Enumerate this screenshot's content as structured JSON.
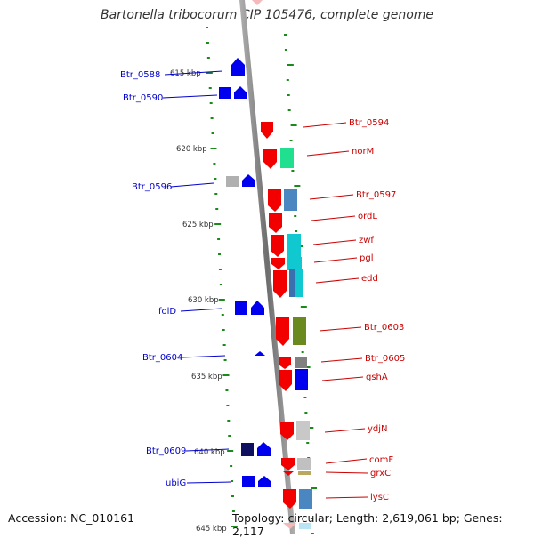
{
  "title": "Bartonella tribocorum CIP 105476, complete genome",
  "footer": {
    "accession": "Accession: NC_010161",
    "summary": "Topology: circular; Length: 2,619,061 bp; Genes: 2,117"
  },
  "colors": {
    "forward_strand": "#f20000",
    "reverse_strand": "#0000ee",
    "tick_marks": "#1a8a1a",
    "axis": "#8c8c8c"
  },
  "scale_labels": [
    "615 kbp",
    "620 kbp",
    "625 kbp",
    "630 kbp",
    "635 kbp",
    "640 kbp",
    "645 kbp"
  ],
  "left_genes": [
    "Btr_0588",
    "Btr_0590",
    "Btr_0596",
    "folD",
    "Btr_0604",
    "Btr_0609",
    "ubiG"
  ],
  "right_genes": [
    "Btr_0594",
    "norM",
    "Btr_0597",
    "ordL",
    "zwf",
    "pgl",
    "edd",
    "Btr_0603",
    "Btr_0605",
    "gshA",
    "ydjN",
    "comF",
    "grxC",
    "lysC"
  ]
}
